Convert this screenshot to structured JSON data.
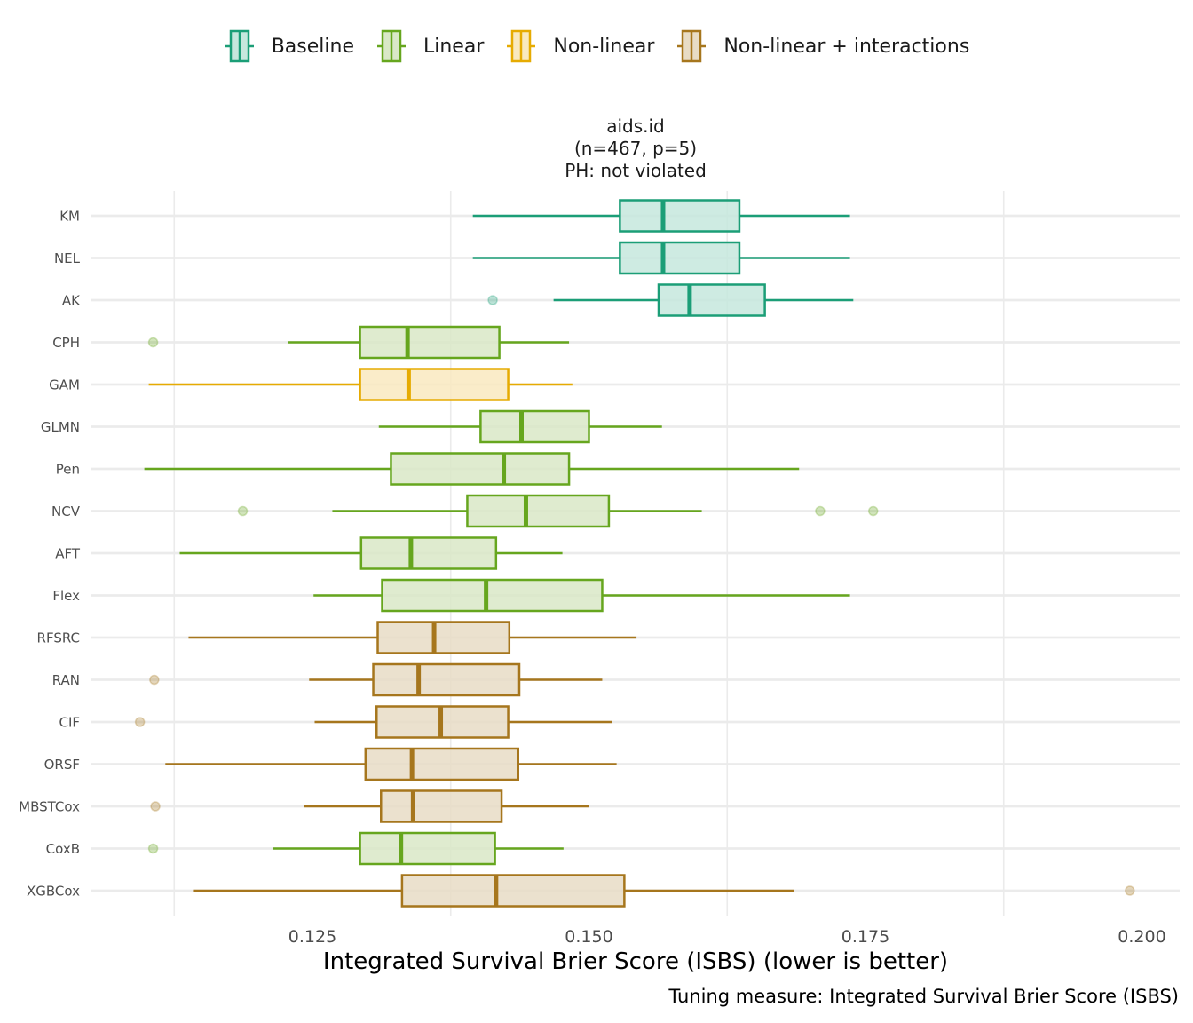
{
  "legend": {
    "items": [
      {
        "label": "Baseline",
        "group": "baseline"
      },
      {
        "label": "Linear",
        "group": "linear"
      },
      {
        "label": "Non-linear",
        "group": "nonlinear"
      },
      {
        "label": "Non-linear + interactions",
        "group": "nonlinear_int"
      }
    ]
  },
  "colors": {
    "baseline": {
      "line": "#1b9e77",
      "fill": "#c6e7dd"
    },
    "linear": {
      "line": "#66a61e",
      "fill": "#d9e8c7"
    },
    "nonlinear": {
      "line": "#e6ab02",
      "fill": "#f9e9bf"
    },
    "nonlinear_int": {
      "line": "#a6761d",
      "fill": "#e8dcc5"
    },
    "grid": "#ebebeb"
  },
  "facet": {
    "title_lines": [
      "aids.id",
      "(n=467, p=5)",
      "PH: not violated"
    ]
  },
  "chart_data": {
    "type": "boxplot",
    "orientation": "horizontal",
    "title": "aids.id (n=467, p=5) PH: not violated",
    "xlabel": "Integrated Survival Brier Score (ISBS) (lower is better)",
    "ylabel": "",
    "caption": "Tuning measure: Integrated Survival Brier Score (ISBS)",
    "xlim": [
      0.1075,
      0.2055
    ],
    "x_ticks": [
      0.125,
      0.15,
      0.175,
      0.2
    ],
    "x_tick_labels": [
      "0.125",
      "0.150",
      "0.175",
      "0.200"
    ],
    "x_gridlines": [
      0.1125,
      0.1375,
      0.1625,
      0.1875
    ],
    "legend_position": "top",
    "series": [
      {
        "name": "KM",
        "group": "baseline",
        "whisker_low": 0.1395,
        "q1": 0.1528,
        "median": 0.1567,
        "q3": 0.1636,
        "whisker_high": 0.1736,
        "outliers": []
      },
      {
        "name": "NEL",
        "group": "baseline",
        "whisker_low": 0.1395,
        "q1": 0.1528,
        "median": 0.1567,
        "q3": 0.1636,
        "whisker_high": 0.1736,
        "outliers": []
      },
      {
        "name": "AK",
        "group": "baseline",
        "whisker_low": 0.1468,
        "q1": 0.1563,
        "median": 0.1591,
        "q3": 0.1659,
        "whisker_high": 0.1739,
        "outliers": [
          0.1413
        ]
      },
      {
        "name": "CPH",
        "group": "linear",
        "whisker_low": 0.1228,
        "q1": 0.1293,
        "median": 0.1336,
        "q3": 0.1419,
        "whisker_high": 0.1482,
        "outliers": [
          0.1106
        ]
      },
      {
        "name": "GAM",
        "group": "nonlinear",
        "whisker_low": 0.1102,
        "q1": 0.1293,
        "median": 0.1337,
        "q3": 0.1427,
        "whisker_high": 0.1485,
        "outliers": []
      },
      {
        "name": "GLMN",
        "group": "linear",
        "whisker_low": 0.131,
        "q1": 0.1402,
        "median": 0.1439,
        "q3": 0.15,
        "whisker_high": 0.1566,
        "outliers": []
      },
      {
        "name": "Pen",
        "group": "linear",
        "whisker_low": 0.1098,
        "q1": 0.1321,
        "median": 0.1423,
        "q3": 0.1482,
        "whisker_high": 0.169,
        "outliers": []
      },
      {
        "name": "NCV",
        "group": "linear",
        "whisker_low": 0.1268,
        "q1": 0.139,
        "median": 0.1443,
        "q3": 0.1518,
        "whisker_high": 0.1602,
        "outliers": [
          0.1187,
          0.1709,
          0.1757
        ]
      },
      {
        "name": "AFT",
        "group": "linear",
        "whisker_low": 0.113,
        "q1": 0.1294,
        "median": 0.1339,
        "q3": 0.1416,
        "whisker_high": 0.1476,
        "outliers": []
      },
      {
        "name": "Flex",
        "group": "linear",
        "whisker_low": 0.1251,
        "q1": 0.1313,
        "median": 0.1407,
        "q3": 0.1512,
        "whisker_high": 0.1736,
        "outliers": []
      },
      {
        "name": "RFSRC",
        "group": "nonlinear_int",
        "whisker_low": 0.1138,
        "q1": 0.1309,
        "median": 0.136,
        "q3": 0.1428,
        "whisker_high": 0.1543,
        "outliers": []
      },
      {
        "name": "RAN",
        "group": "nonlinear_int",
        "whisker_low": 0.1247,
        "q1": 0.1305,
        "median": 0.1346,
        "q3": 0.1437,
        "whisker_high": 0.1512,
        "outliers": [
          0.1107
        ]
      },
      {
        "name": "CIF",
        "group": "nonlinear_int",
        "whisker_low": 0.1252,
        "q1": 0.1308,
        "median": 0.1366,
        "q3": 0.1427,
        "whisker_high": 0.1521,
        "outliers": [
          0.1094
        ]
      },
      {
        "name": "ORSF",
        "group": "nonlinear_int",
        "whisker_low": 0.1117,
        "q1": 0.1298,
        "median": 0.134,
        "q3": 0.1436,
        "whisker_high": 0.1525,
        "outliers": []
      },
      {
        "name": "MBSTCox",
        "group": "nonlinear_int",
        "whisker_low": 0.1242,
        "q1": 0.1312,
        "median": 0.1341,
        "q3": 0.1421,
        "whisker_high": 0.15,
        "outliers": [
          0.1108
        ]
      },
      {
        "name": "CoxB",
        "group": "linear",
        "whisker_low": 0.1214,
        "q1": 0.1293,
        "median": 0.133,
        "q3": 0.1415,
        "whisker_high": 0.1477,
        "outliers": [
          0.1106
        ]
      },
      {
        "name": "XGBCox",
        "group": "nonlinear_int",
        "whisker_low": 0.1142,
        "q1": 0.1331,
        "median": 0.1416,
        "q3": 0.1532,
        "whisker_high": 0.1685,
        "outliers": [
          0.1989
        ]
      }
    ]
  }
}
